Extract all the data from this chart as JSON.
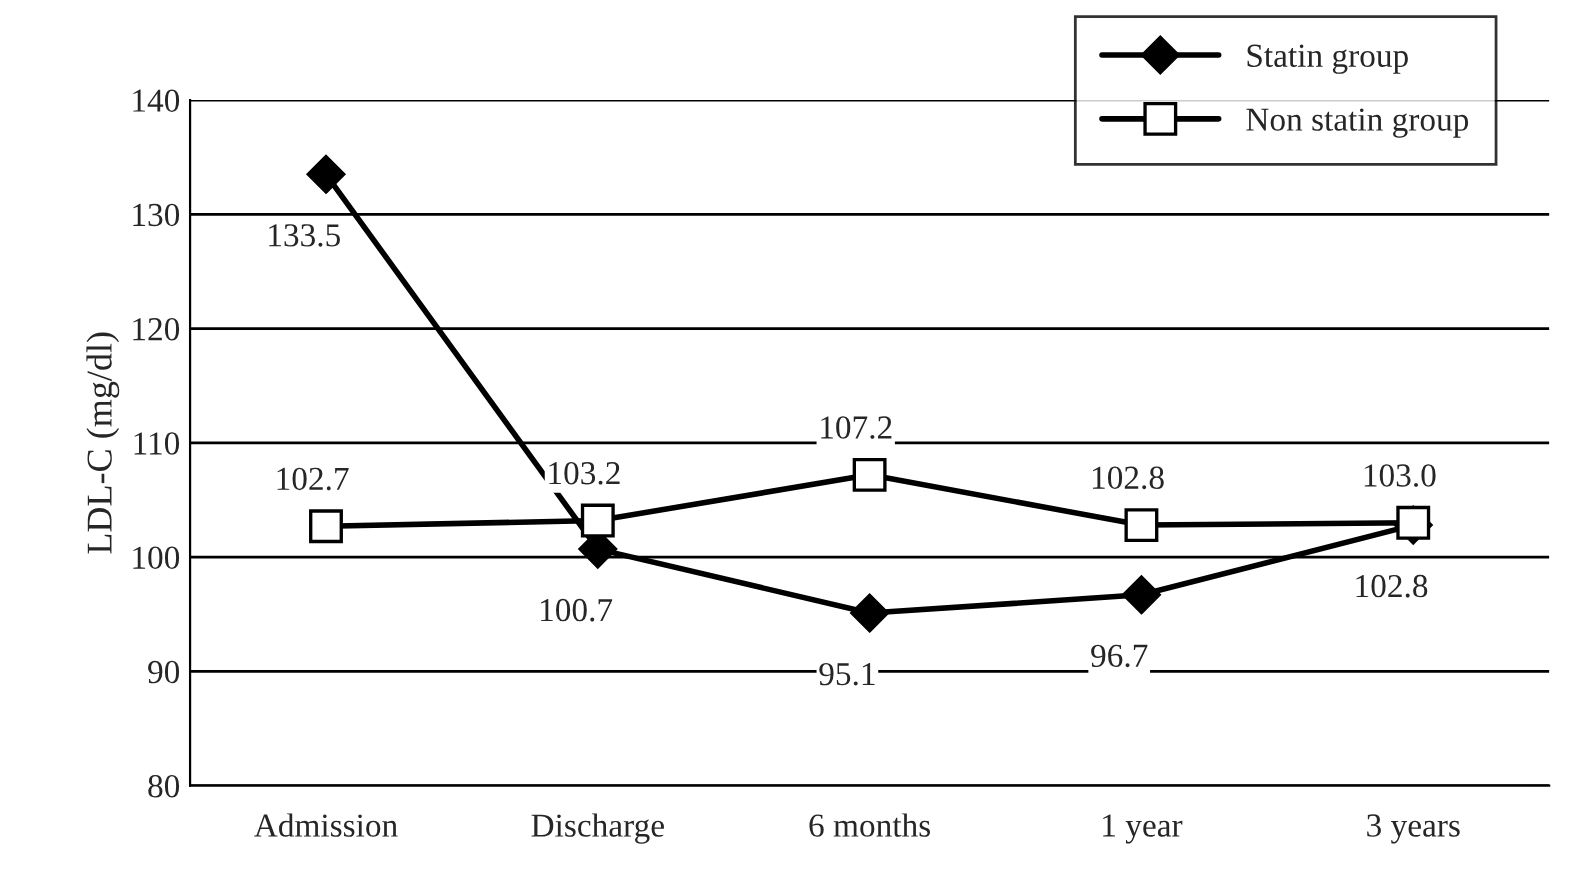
{
  "chart_data": {
    "type": "line",
    "ylabel": "LDL-C (mg/dl)",
    "categories": [
      "Admission",
      "Discharge",
      "6 months",
      "1 year",
      "3 years"
    ],
    "series": [
      {
        "name": "Statin group",
        "color": "#000000",
        "marker": "diamond",
        "values": [
          133.5,
          100.7,
          95.1,
          96.7,
          102.8
        ],
        "value_labels": [
          "133.5",
          "100.7",
          "95.1",
          "96.7",
          "102.8"
        ]
      },
      {
        "name": "Non statin group",
        "color": "#000000",
        "marker": "square",
        "values": [
          102.7,
          103.2,
          107.2,
          102.8,
          103.0
        ],
        "value_labels": [
          "102.7",
          "103.2",
          "107.2",
          "102.8",
          "103.0"
        ]
      }
    ],
    "ylim": [
      80,
      140
    ],
    "yticks": [
      80,
      90,
      100,
      110,
      120,
      130,
      140
    ],
    "grid": "y",
    "legend": "top right",
    "line_style": "solid"
  }
}
